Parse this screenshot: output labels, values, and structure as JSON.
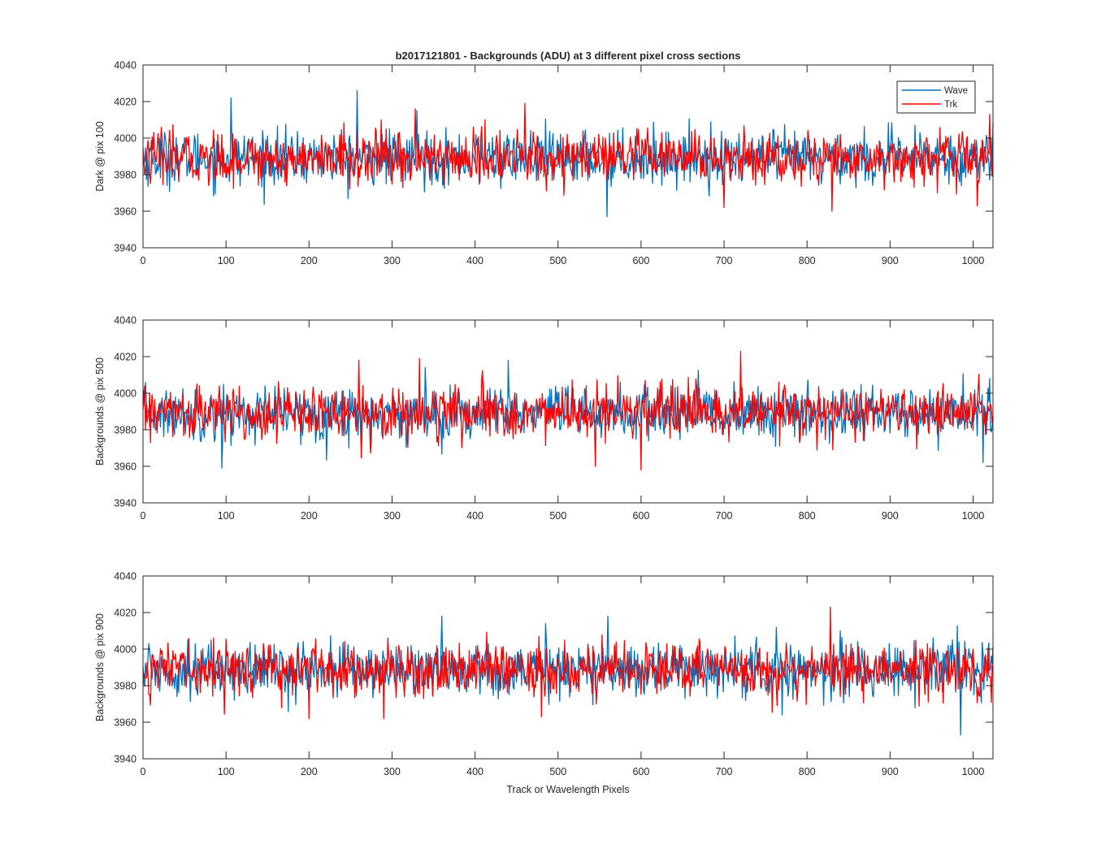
{
  "figure": {
    "title": "b2017121801 - Backgrounds (ADU) at 3 different pixel cross sections",
    "xlabel": "Track or Wavelength Pixels"
  },
  "colors": {
    "Wave": "#0072BD",
    "Trk": "#FF0000",
    "axes": "#262626"
  },
  "chart_data": [
    {
      "type": "line",
      "ylabel": "Dark @ pix 100",
      "xlim": [
        0,
        1024
      ],
      "ylim": [
        3940,
        4040
      ],
      "xticks": [
        0,
        100,
        200,
        300,
        400,
        500,
        600,
        700,
        800,
        900,
        1000
      ],
      "yticks": [
        3940,
        3960,
        3980,
        4000,
        4020,
        4040
      ],
      "grid": false,
      "legend": {
        "placement": "top-right",
        "entries": [
          "Wave",
          "Trk"
        ]
      },
      "series": [
        {
          "name": "Wave",
          "mean": 3989,
          "std": 8,
          "spikes": [
            [
              106,
              4022
            ],
            [
              258,
              4026
            ],
            [
              330,
              4015
            ],
            [
              559,
              3957
            ],
            [
              1055,
              3998
            ]
          ]
        },
        {
          "name": "Trk",
          "mean": 3989,
          "std": 8,
          "spikes": [
            [
              328,
              4016
            ],
            [
              460,
              4019
            ],
            [
              830,
              3960
            ],
            [
              1005,
              3963
            ],
            [
              1020,
              4013
            ],
            [
              700,
              3962
            ]
          ]
        }
      ]
    },
    {
      "type": "line",
      "ylabel": "Backgrounds @ pix 500",
      "xlim": [
        0,
        1024
      ],
      "ylim": [
        3940,
        4040
      ],
      "xticks": [
        0,
        100,
        200,
        300,
        400,
        500,
        600,
        700,
        800,
        900,
        1000
      ],
      "yticks": [
        3940,
        3960,
        3980,
        4000,
        4020,
        4040
      ],
      "grid": false,
      "series": [
        {
          "name": "Wave",
          "mean": 3989,
          "std": 8,
          "spikes": [
            [
              95,
              3959
            ],
            [
              340,
              4014
            ],
            [
              440,
              4018
            ],
            [
              1020,
              4008
            ],
            [
              1012,
              3962
            ]
          ]
        },
        {
          "name": "Trk",
          "mean": 3989,
          "std": 8,
          "spikes": [
            [
              260,
              4018
            ],
            [
              333,
              4019
            ],
            [
              720,
              4023
            ],
            [
              600,
              3958
            ],
            [
              545,
              3960
            ]
          ]
        }
      ]
    },
    {
      "type": "line",
      "ylabel": "Backgrounds @ pix 900",
      "xlim": [
        0,
        1024
      ],
      "ylim": [
        3940,
        4040
      ],
      "xticks": [
        0,
        100,
        200,
        300,
        400,
        500,
        600,
        700,
        800,
        900,
        1000
      ],
      "yticks": [
        3940,
        3960,
        3980,
        4000,
        4020,
        4040
      ],
      "grid": false,
      "series": [
        {
          "name": "Wave",
          "mean": 3989,
          "std": 8,
          "spikes": [
            [
              360,
              4018
            ],
            [
              560,
              4018
            ],
            [
              985,
              3953
            ],
            [
              770,
              3964
            ]
          ]
        },
        {
          "name": "Trk",
          "mean": 3989,
          "std": 8,
          "spikes": [
            [
              828,
              4023
            ],
            [
              200,
              3962
            ],
            [
              290,
              3962
            ],
            [
              480,
              3963
            ]
          ]
        }
      ]
    }
  ]
}
